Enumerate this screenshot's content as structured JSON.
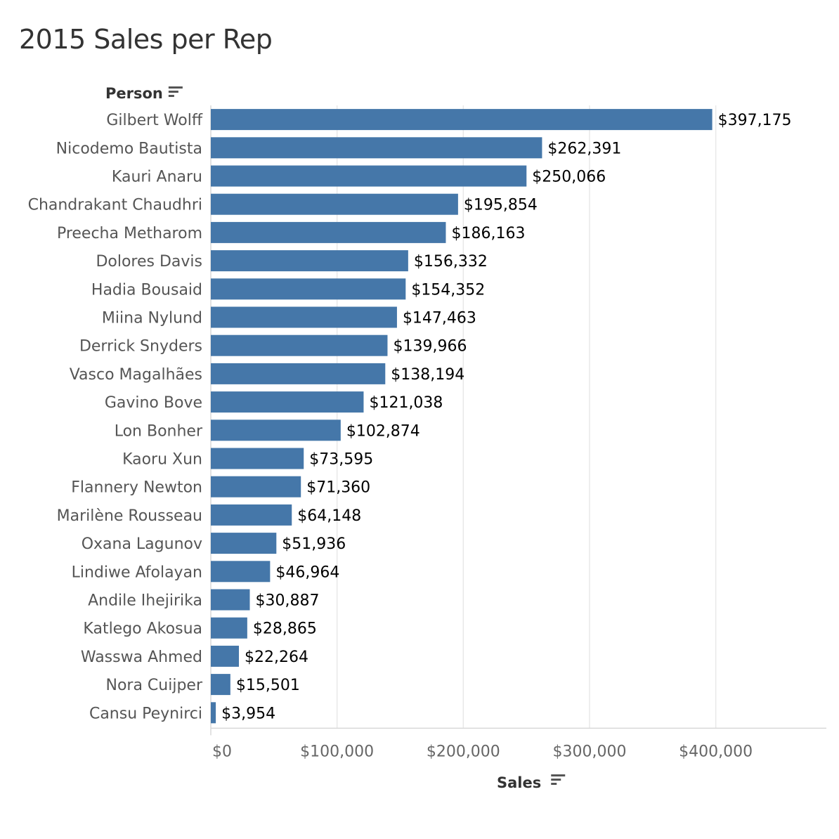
{
  "title": "2015 Sales per Rep",
  "colors": {
    "bar": "#4577a9",
    "grid": "#e8e8e8",
    "axis": "#d9d9d9",
    "sort_icon": "#555555"
  },
  "icons": {
    "row_sort": "sort-descending-icon",
    "col_sort": "sort-descending-icon"
  },
  "chart_data": {
    "type": "bar",
    "orientation": "horizontal",
    "title": "2015 Sales per Rep",
    "ylabel": "Person",
    "xlabel": "Sales",
    "xlim": [
      0,
      485000
    ],
    "grid": true,
    "x_ticks": [
      0,
      100000,
      200000,
      300000,
      400000
    ],
    "x_tick_labels": [
      "$0",
      "$100,000",
      "$200,000",
      "$300,000",
      "$400,000"
    ],
    "categories": [
      "Gilbert Wolff",
      "Nicodemo Bautista",
      "Kauri Anaru",
      "Chandrakant Chaudhri",
      "Preecha Metharom",
      "Dolores Davis",
      "Hadia Bousaid",
      "Miina Nylund",
      "Derrick Snyders",
      "Vasco Magalhães",
      "Gavino Bove",
      "Lon Bonher",
      "Kaoru Xun",
      "Flannery Newton",
      "Marilène Rousseau",
      "Oxana Lagunov",
      "Lindiwe Afolayan",
      "Andile Ihejirika",
      "Katlego Akosua",
      "Wasswa Ahmed",
      "Nora Cuijper",
      "Cansu Peynirci"
    ],
    "values": [
      397175,
      262391,
      250066,
      195854,
      186163,
      156332,
      154352,
      147463,
      139966,
      138194,
      121038,
      102874,
      73595,
      71360,
      64148,
      51936,
      46964,
      30887,
      28865,
      22264,
      15501,
      3954
    ],
    "value_labels": [
      "$397,175",
      "$262,391",
      "$250,066",
      "$195,854",
      "$186,163",
      "$156,332",
      "$154,352",
      "$147,463",
      "$139,966",
      "$138,194",
      "$121,038",
      "$102,874",
      "$73,595",
      "$71,360",
      "$64,148",
      "$51,936",
      "$46,964",
      "$30,887",
      "$28,865",
      "$22,264",
      "$15,501",
      "$3,954"
    ]
  }
}
